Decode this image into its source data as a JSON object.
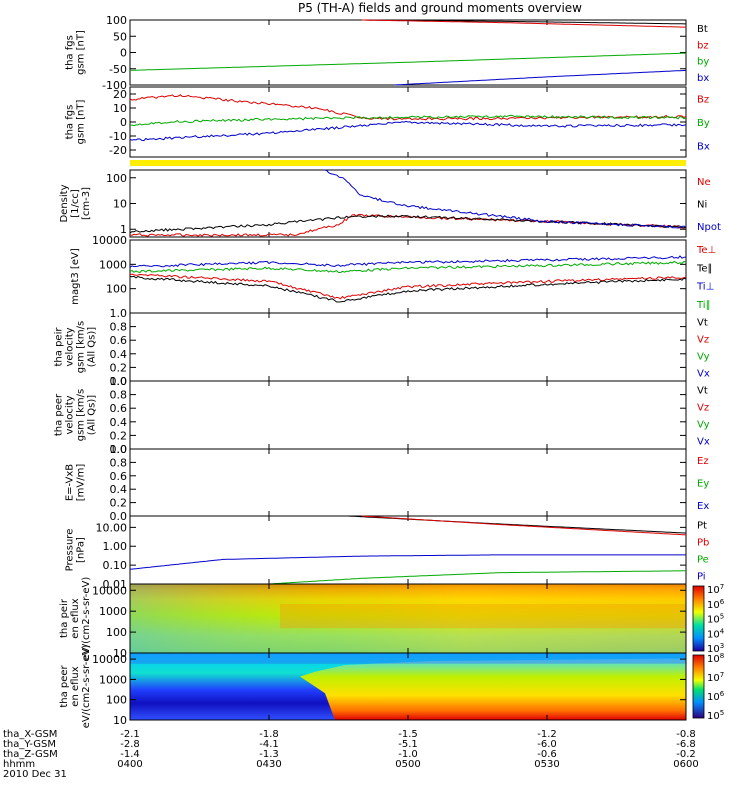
{
  "title": "P5 (TH-A) fields and ground moments overview",
  "date_label": "2010 Dec 31",
  "time_axis": {
    "rows": [
      {
        "label": "tha_X-GSM",
        "values": [
          "-2.1",
          "-1.8",
          "-1.5",
          "-1.2",
          "-0.8"
        ]
      },
      {
        "label": "tha_Y-GSM",
        "values": [
          "-2.8",
          "-4.1",
          "-5.1",
          "-6.0",
          "-6.8"
        ]
      },
      {
        "label": "tha_Z-GSM",
        "values": [
          "-1.4",
          "-1.3",
          "-1.0",
          "-0.6",
          "-0.2"
        ]
      },
      {
        "label": "hhmm",
        "values": [
          "0400",
          "0430",
          "0500",
          "0530",
          "0600"
        ]
      }
    ]
  },
  "chart_data": [
    {
      "type": "line",
      "ylabel": "tha fgs gsm [nT]",
      "ylim": [
        -100,
        100
      ],
      "yticks": [
        "100",
        "50",
        "0",
        "-50",
        "-100"
      ],
      "legend": [
        {
          "name": "Bt",
          "color": "#000000"
        },
        {
          "name": "bz",
          "color": "#dd0000"
        },
        {
          "name": "by",
          "color": "#00aa00"
        },
        {
          "name": "bx",
          "color": "#0000cc"
        }
      ],
      "series": [
        {
          "name": "Bt",
          "x": [
            "04:50",
            "05:20",
            "06:00"
          ],
          "values": [
            100,
            96,
            88
          ]
        },
        {
          "name": "bz",
          "x": [
            "04:50",
            "05:20",
            "06:00"
          ],
          "values": [
            100,
            92,
            78
          ]
        },
        {
          "name": "by",
          "x": [
            "04:00",
            "05:00",
            "06:00"
          ],
          "values": [
            -55,
            -30,
            -2
          ]
        },
        {
          "name": "bx",
          "x": [
            "04:57",
            "05:30",
            "06:00"
          ],
          "values": [
            -100,
            -75,
            -55
          ]
        }
      ]
    },
    {
      "type": "line",
      "ylabel": "tha fgs gsm [nT]",
      "ylim": [
        -25,
        25
      ],
      "yticks": [
        "20",
        "10",
        "0",
        "-10",
        "-20"
      ],
      "legend": [
        {
          "name": "Bz",
          "color": "#dd0000"
        },
        {
          "name": "By",
          "color": "#00aa00"
        },
        {
          "name": "Bx",
          "color": "#0000cc"
        }
      ],
      "series": [
        {
          "name": "Bz",
          "x": [
            "04:00",
            "04:10",
            "04:40",
            "04:50",
            "05:00",
            "05:30",
            "06:00"
          ],
          "values": [
            16,
            19,
            10,
            3,
            2,
            3,
            4
          ]
        },
        {
          "name": "By",
          "x": [
            "04:00",
            "04:08",
            "04:30",
            "04:50",
            "05:20",
            "06:00"
          ],
          "values": [
            -2,
            0,
            2,
            3,
            4,
            3
          ]
        },
        {
          "name": "Bx",
          "x": [
            "04:00",
            "04:30",
            "05:00",
            "05:30",
            "06:00"
          ],
          "values": [
            -13,
            -8,
            0,
            -3,
            -2
          ]
        }
      ]
    },
    {
      "type": "line",
      "ylabel": "Density [1/cc] [cm-3]",
      "yscale": "log",
      "ylim": [
        0.5,
        200
      ],
      "yticks": [
        "100",
        "10",
        "1"
      ],
      "legend": [
        {
          "name": "Ne",
          "color": "#dd0000"
        },
        {
          "name": "Ni",
          "color": "#000000"
        },
        {
          "name": "Npot",
          "color": "#0000cc"
        }
      ],
      "series": [
        {
          "name": "Ne",
          "x": [
            "04:00",
            "04:35",
            "04:45",
            "04:48",
            "05:00",
            "05:30",
            "06:00"
          ],
          "values": [
            0.6,
            0.6,
            1.5,
            3.5,
            3.0,
            2.0,
            1.2
          ]
        },
        {
          "name": "Ni",
          "x": [
            "04:00",
            "04:30",
            "04:48",
            "05:00",
            "05:30",
            "06:00"
          ],
          "values": [
            0.8,
            1.5,
            3.2,
            3.2,
            2.0,
            1.2
          ]
        },
        {
          "name": "Npot",
          "x": [
            "04:42",
            "04:46",
            "04:50",
            "05:00",
            "05:10",
            "05:30",
            "06:00"
          ],
          "values": [
            200,
            100,
            20,
            8,
            5,
            2,
            1.2
          ]
        }
      ]
    },
    {
      "type": "line",
      "ylabel": "magt3 [eV]",
      "yscale": "log",
      "ylim": [
        10,
        10000
      ],
      "yticks": [
        "10000",
        "1000",
        "100"
      ],
      "legend": [
        {
          "name": "Te⊥",
          "color": "#dd0000"
        },
        {
          "name": "Te∥",
          "color": "#000000"
        },
        {
          "name": "Ti⊥",
          "color": "#0000cc"
        },
        {
          "name": "Ti∥",
          "color": "#00aa00"
        }
      ],
      "series": [
        {
          "name": "Te⊥",
          "x": [
            "04:00",
            "04:30",
            "04:45",
            "05:00",
            "05:30",
            "06:00"
          ],
          "values": [
            400,
            200,
            40,
            120,
            200,
            300
          ]
        },
        {
          "name": "Te∥",
          "x": [
            "04:00",
            "04:30",
            "04:45",
            "05:00",
            "05:30",
            "06:00"
          ],
          "values": [
            300,
            130,
            30,
            80,
            150,
            250
          ]
        },
        {
          "name": "Ti⊥",
          "x": [
            "04:00",
            "04:30",
            "04:45",
            "05:00",
            "05:30",
            "06:00"
          ],
          "values": [
            800,
            1200,
            900,
            1200,
            1500,
            2000
          ]
        },
        {
          "name": "Ti∥",
          "x": [
            "04:00",
            "04:30",
            "04:45",
            "05:00",
            "05:30",
            "06:00"
          ],
          "values": [
            500,
            700,
            500,
            700,
            900,
            1200
          ]
        }
      ]
    },
    {
      "type": "line",
      "ylabel": "tha peir velocity gsm [km/s (All Qs)]",
      "ylim": [
        0,
        1
      ],
      "yticks": [
        "1.0",
        "0.8",
        "0.6",
        "0.4",
        "0.2",
        "0.0"
      ],
      "legend": [
        {
          "name": "Vt",
          "color": "#000000"
        },
        {
          "name": "Vz",
          "color": "#dd0000"
        },
        {
          "name": "Vy",
          "color": "#00aa00"
        },
        {
          "name": "Vx",
          "color": "#0000cc"
        }
      ],
      "series": []
    },
    {
      "type": "line",
      "ylabel": "tha peer velocity gsm [km/s (All Qs)]",
      "ylim": [
        0,
        1
      ],
      "yticks": [
        "1.0",
        "0.8",
        "0.6",
        "0.4",
        "0.2",
        "0.0"
      ],
      "legend": [
        {
          "name": "Vt",
          "color": "#000000"
        },
        {
          "name": "Vz",
          "color": "#dd0000"
        },
        {
          "name": "Vy",
          "color": "#00aa00"
        },
        {
          "name": "Vx",
          "color": "#0000cc"
        }
      ],
      "series": []
    },
    {
      "type": "line",
      "ylabel": "E=-VxB [mV/m]",
      "ylim": [
        0,
        1
      ],
      "yticks": [
        "1.0",
        "0.8",
        "0.6",
        "0.4",
        "0.2",
        "0.0"
      ],
      "legend": [
        {
          "name": "Ez",
          "color": "#dd0000"
        },
        {
          "name": "Ey",
          "color": "#00aa00"
        },
        {
          "name": "Ex",
          "color": "#0000cc"
        }
      ],
      "series": []
    },
    {
      "type": "line",
      "ylabel": "Pressure [nPa]",
      "yscale": "log",
      "ylim": [
        0.01,
        40
      ],
      "yticks": [
        "10.00",
        "1.00",
        "0.10",
        "0.01"
      ],
      "legend": [
        {
          "name": "Pt",
          "color": "#000000"
        },
        {
          "name": "Pb",
          "color": "#dd0000"
        },
        {
          "name": "Pe",
          "color": "#00aa00"
        },
        {
          "name": "Pi",
          "color": "#0000cc"
        }
      ],
      "series": [
        {
          "name": "Pt",
          "x": [
            "04:47",
            "05:20",
            "06:00"
          ],
          "values": [
            40,
            15,
            5
          ]
        },
        {
          "name": "Pb",
          "x": [
            "04:50",
            "05:20",
            "06:00"
          ],
          "values": [
            40,
            14,
            4
          ]
        },
        {
          "name": "Pe",
          "x": [
            "04:00",
            "04:30",
            "04:50",
            "05:20",
            "06:00"
          ],
          "values": [
            0.01,
            0.01,
            0.02,
            0.04,
            0.05
          ]
        },
        {
          "name": "Pi",
          "x": [
            "04:00",
            "04:20",
            "04:50",
            "05:20",
            "06:00"
          ],
          "values": [
            0.06,
            0.2,
            0.3,
            0.35,
            0.35
          ]
        }
      ]
    },
    {
      "type": "heatmap",
      "ylabel": "tha peir en eflux eV/(cm2-s-sr-eV)",
      "yscale": "log",
      "ylim": [
        10,
        20000
      ],
      "yticks": [
        "10000",
        "1000",
        "100",
        "10"
      ],
      "colorbar": [
        "10^7",
        "10^6",
        "10^5",
        "10^4",
        "10^3"
      ]
    },
    {
      "type": "heatmap",
      "ylabel": "tha peer en eflux eV/(cm2-s-sr-eV)",
      "yscale": "log",
      "ylim": [
        10,
        20000
      ],
      "yticks": [
        "10000",
        "1000",
        "100",
        "10"
      ],
      "colorbar": [
        "10^8",
        "10^7",
        "10^6",
        "10^5"
      ]
    }
  ]
}
